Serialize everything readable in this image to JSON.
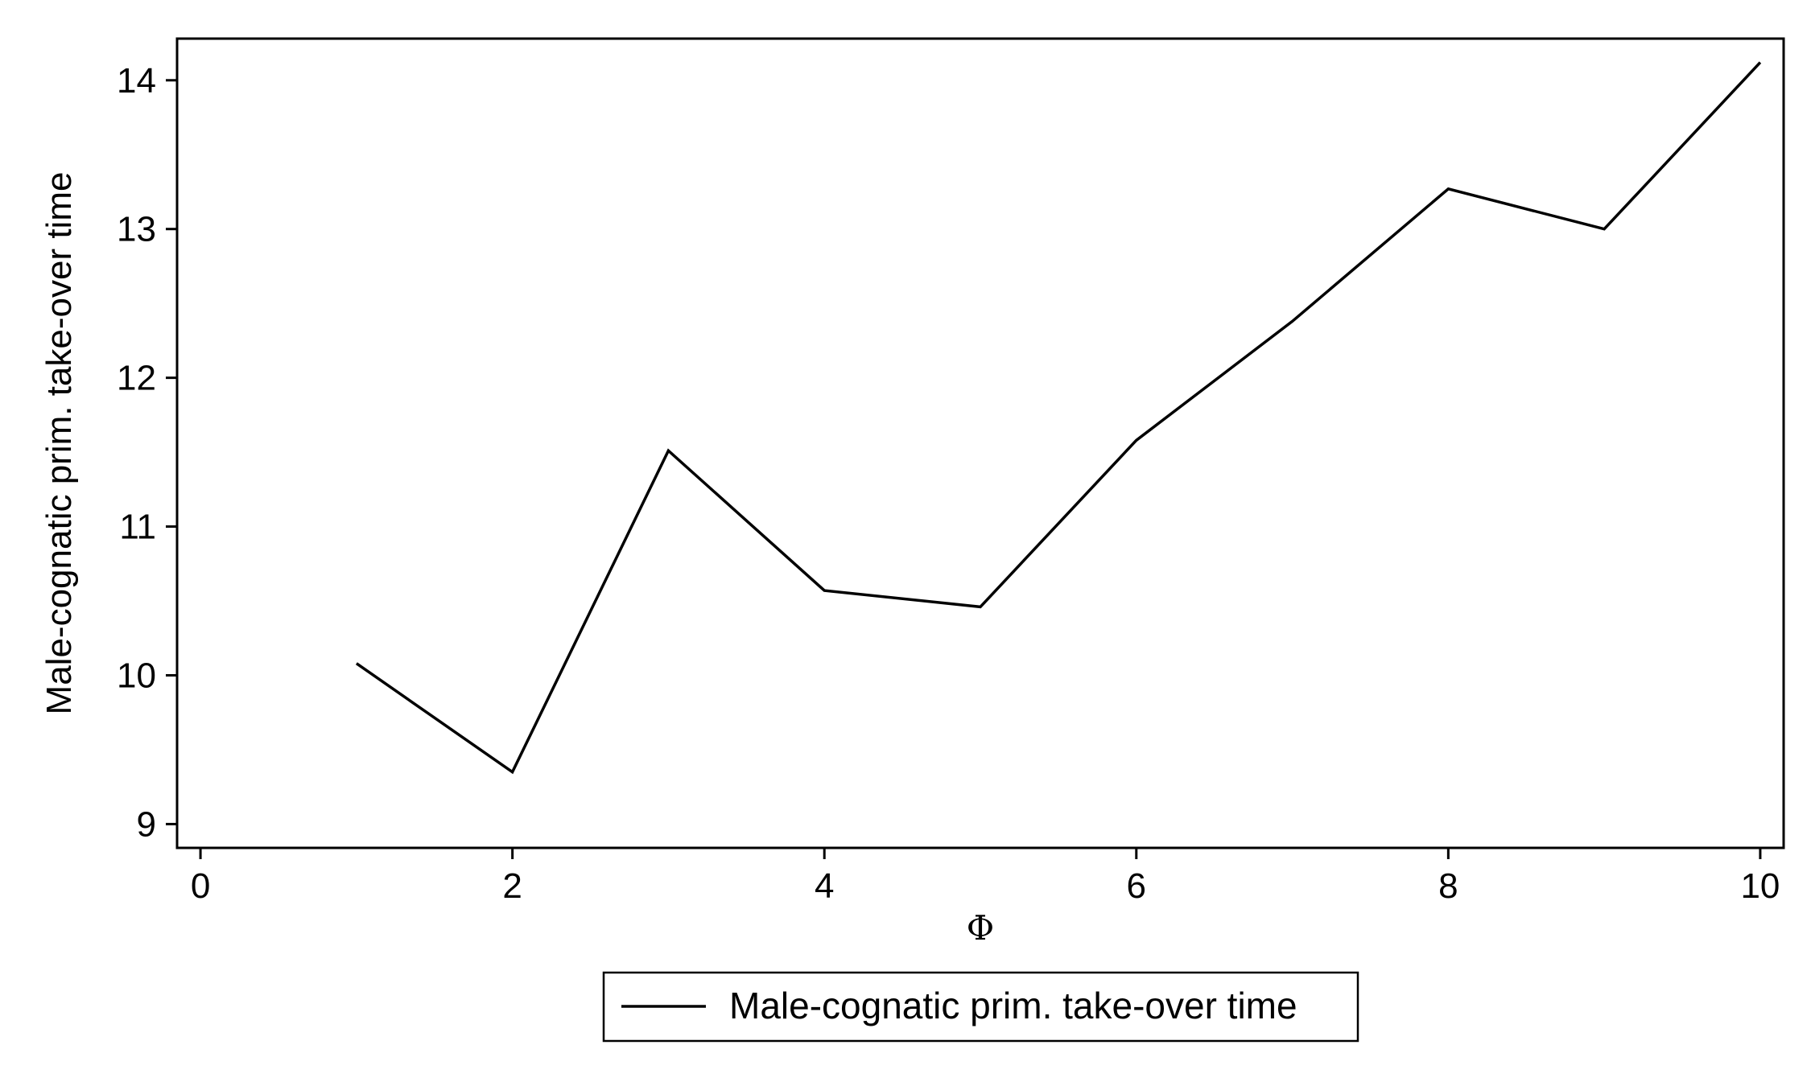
{
  "chart_data": {
    "type": "line",
    "title": "",
    "xlabel": "Φ",
    "ylabel": "Male-cognatic prim. take-over time",
    "xlim": [
      -0.15,
      10.15
    ],
    "ylim": [
      8.84,
      14.28
    ],
    "xticks": [
      0,
      2,
      4,
      6,
      8,
      10
    ],
    "yticks": [
      9,
      10,
      11,
      12,
      13,
      14
    ],
    "grid": false,
    "legend": "bottom-center",
    "series": [
      {
        "name": "Male-cognatic prim. take-over time",
        "color": "#000000",
        "x": [
          1,
          2,
          3,
          4,
          5,
          6,
          7,
          8,
          9,
          10
        ],
        "y": [
          10.08,
          9.35,
          11.51,
          10.57,
          10.46,
          11.58,
          12.38,
          13.27,
          13.0,
          14.12
        ]
      }
    ]
  }
}
